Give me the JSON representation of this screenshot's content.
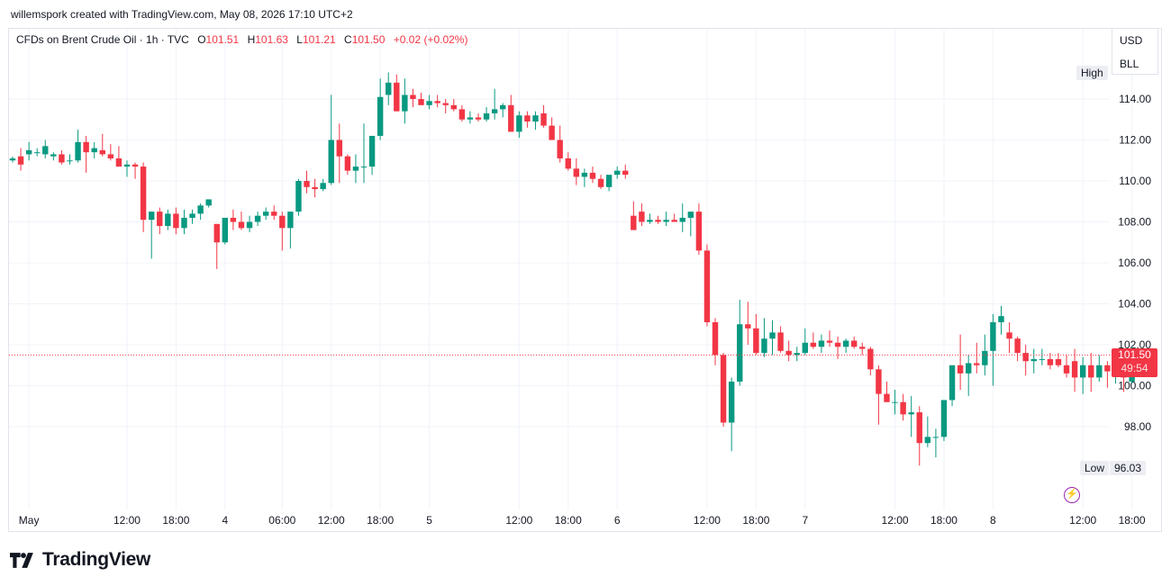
{
  "attribution": "willemspork created with TradingView.com, May 08, 2026 17:10 UTC+2",
  "legend": {
    "symbol": "CFDs on Brent Crude Oil · 1h · TVC",
    "o_label": "O",
    "o_value": "101.51",
    "h_label": "H",
    "h_value": "101.63",
    "l_label": "L",
    "l_value": "101.21",
    "c_label": "C",
    "c_value": "101.50",
    "change": "+0.02 (+0.02%)"
  },
  "currency_menu": [
    "USD",
    "BLL"
  ],
  "high_label": "High",
  "low_label": "Low",
  "low_value": "96.03",
  "last_price": "101.50",
  "countdown": "49:54",
  "brand": "TradingView",
  "colors": {
    "up": "#089981",
    "down": "#f23645",
    "grid": "#f0f3fa",
    "text": "#131722"
  },
  "icons": {
    "flash": "flash-icon",
    "logo": "tradingview-logo-icon"
  },
  "chart_data": {
    "type": "candlestick",
    "title": "CFDs on Brent Crude Oil · 1h · TVC",
    "ylim": [
      95,
      116
    ],
    "y_ticks": [
      "98.00",
      "100.00",
      "102.00",
      "104.00",
      "106.00",
      "108.00",
      "110.00",
      "112.00",
      "114.00"
    ],
    "y_tick_values": [
      98,
      100,
      102,
      104,
      106,
      108,
      110,
      112,
      114
    ],
    "x_ticks": [
      {
        "label": "May",
        "i": 2
      },
      {
        "label": "12:00",
        "i": 14
      },
      {
        "label": "18:00",
        "i": 20
      },
      {
        "label": "4",
        "i": 26
      },
      {
        "label": "06:00",
        "i": 33
      },
      {
        "label": "12:00",
        "i": 39
      },
      {
        "label": "18:00",
        "i": 45
      },
      {
        "label": "5",
        "i": 51
      },
      {
        "label": "12:00",
        "i": 62
      },
      {
        "label": "18:00",
        "i": 68
      },
      {
        "label": "6",
        "i": 74
      },
      {
        "label": "12:00",
        "i": 85
      },
      {
        "label": "18:00",
        "i": 91
      },
      {
        "label": "7",
        "i": 97
      },
      {
        "label": "12:00",
        "i": 108
      },
      {
        "label": "18:00",
        "i": 114
      },
      {
        "label": "8",
        "i": 120
      },
      {
        "label": "12:00",
        "i": 131
      },
      {
        "label": "18:00",
        "i": 137
      }
    ],
    "last_close": 101.5,
    "candles": [
      [
        111.0,
        111.2,
        110.9,
        111.1
      ],
      [
        111.2,
        111.6,
        110.5,
        110.8
      ],
      [
        111.3,
        111.9,
        111.0,
        111.5
      ],
      [
        111.4,
        111.6,
        111.2,
        111.4
      ],
      [
        111.3,
        112.0,
        111.1,
        111.7
      ],
      [
        111.2,
        111.4,
        111.0,
        111.3
      ],
      [
        111.3,
        111.5,
        110.8,
        110.9
      ],
      [
        111.0,
        111.3,
        110.8,
        111.0
      ],
      [
        111.0,
        112.5,
        110.9,
        111.9
      ],
      [
        111.9,
        112.2,
        110.4,
        111.4
      ],
      [
        111.4,
        111.9,
        111.1,
        111.6
      ],
      [
        111.5,
        112.3,
        111.2,
        111.3
      ],
      [
        111.3,
        111.8,
        111.0,
        111.1
      ],
      [
        111.1,
        111.7,
        110.8,
        110.7
      ],
      [
        110.7,
        111.0,
        110.2,
        110.8
      ],
      [
        110.8,
        110.9,
        110.1,
        110.7
      ],
      [
        110.7,
        110.9,
        107.5,
        108.1
      ],
      [
        108.1,
        108.5,
        106.2,
        108.5
      ],
      [
        108.5,
        108.7,
        107.4,
        107.8
      ],
      [
        107.8,
        108.6,
        107.6,
        108.4
      ],
      [
        108.4,
        108.7,
        107.4,
        107.7
      ],
      [
        107.7,
        108.6,
        107.4,
        108.2
      ],
      [
        108.2,
        108.6,
        107.9,
        108.4
      ],
      [
        108.4,
        108.9,
        108.1,
        108.8
      ],
      [
        108.8,
        109.1,
        108.7,
        109.1
      ],
      [
        107.9,
        107.9,
        105.7,
        107.0
      ],
      [
        107.0,
        108.2,
        106.9,
        108.2
      ],
      [
        108.2,
        108.6,
        107.6,
        108.0
      ],
      [
        108.0,
        108.5,
        107.6,
        107.7
      ],
      [
        107.7,
        108.3,
        107.5,
        108.0
      ],
      [
        108.0,
        108.5,
        107.8,
        108.3
      ],
      [
        108.3,
        108.7,
        108.1,
        108.5
      ],
      [
        108.5,
        108.8,
        108.1,
        108.3
      ],
      [
        108.3,
        108.5,
        106.6,
        107.7
      ],
      [
        107.7,
        108.5,
        106.7,
        108.5
      ],
      [
        108.5,
        110.1,
        108.3,
        110.0
      ],
      [
        110.0,
        110.5,
        109.4,
        109.7
      ],
      [
        109.7,
        110.1,
        109.2,
        109.6
      ],
      [
        109.6,
        110.1,
        109.5,
        109.9
      ],
      [
        109.9,
        114.2,
        109.8,
        112.0
      ],
      [
        112.0,
        112.8,
        109.9,
        111.2
      ],
      [
        111.2,
        111.3,
        110.3,
        110.5
      ],
      [
        110.5,
        111.3,
        109.9,
        110.7
      ],
      [
        110.7,
        112.8,
        109.9,
        110.7
      ],
      [
        110.7,
        112.1,
        110.3,
        112.2
      ],
      [
        112.2,
        115.0,
        112.0,
        114.1
      ],
      [
        114.2,
        115.3,
        113.7,
        114.8
      ],
      [
        114.8,
        115.2,
        113.4,
        113.4
      ],
      [
        113.4,
        115.0,
        112.8,
        114.2
      ],
      [
        114.2,
        114.5,
        113.6,
        114.0
      ],
      [
        114.0,
        114.3,
        113.8,
        113.7
      ],
      [
        113.7,
        114.2,
        113.5,
        113.9
      ],
      [
        113.9,
        114.2,
        113.6,
        113.8
      ],
      [
        113.8,
        114.0,
        113.3,
        113.7
      ],
      [
        113.7,
        114.0,
        113.4,
        113.5
      ],
      [
        113.5,
        113.7,
        112.9,
        113.0
      ],
      [
        113.0,
        113.4,
        112.8,
        113.1
      ],
      [
        113.1,
        113.3,
        112.9,
        113.0
      ],
      [
        113.0,
        113.6,
        112.9,
        113.3
      ],
      [
        113.3,
        114.5,
        113.0,
        113.5
      ],
      [
        113.5,
        113.8,
        113.1,
        113.7
      ],
      [
        113.7,
        114.2,
        112.6,
        112.4
      ],
      [
        112.4,
        113.4,
        112.1,
        113.2
      ],
      [
        113.2,
        113.4,
        112.6,
        112.9
      ],
      [
        112.9,
        113.4,
        112.5,
        113.2
      ],
      [
        113.3,
        113.7,
        112.6,
        112.7
      ],
      [
        112.7,
        113.1,
        112.0,
        112.0
      ],
      [
        112.0,
        112.7,
        110.9,
        111.1
      ],
      [
        111.1,
        111.4,
        110.5,
        110.6
      ],
      [
        110.6,
        111.1,
        109.8,
        110.2
      ],
      [
        110.2,
        110.6,
        109.7,
        110.4
      ],
      [
        110.4,
        110.7,
        109.9,
        110.1
      ],
      [
        110.1,
        110.3,
        109.6,
        109.7
      ],
      [
        109.7,
        110.2,
        109.5,
        110.3
      ],
      [
        110.3,
        110.7,
        110.1,
        110.5
      ],
      [
        110.5,
        110.8,
        110.1,
        110.3
      ],
      [
        108.3,
        109.0,
        107.8,
        107.6
      ],
      [
        108.5,
        108.9,
        107.8,
        108.0
      ],
      [
        108.0,
        108.4,
        107.9,
        108.1
      ],
      [
        108.1,
        108.3,
        107.9,
        108.0
      ],
      [
        108.0,
        108.5,
        107.8,
        108.1
      ],
      [
        108.1,
        108.4,
        108.0,
        108.0
      ],
      [
        108.0,
        108.9,
        107.5,
        108.2
      ],
      [
        108.2,
        108.5,
        107.3,
        108.5
      ],
      [
        108.5,
        108.9,
        106.4,
        106.6
      ],
      [
        106.6,
        106.9,
        102.9,
        103.1
      ],
      [
        103.1,
        103.3,
        101.0,
        101.5
      ],
      [
        101.5,
        101.6,
        98.0,
        98.2
      ],
      [
        98.2,
        100.4,
        96.8,
        100.2
      ],
      [
        100.2,
        104.2,
        100.0,
        103.0
      ],
      [
        103.0,
        104.1,
        102.0,
        102.8
      ],
      [
        102.8,
        103.5,
        101.5,
        101.6
      ],
      [
        101.6,
        103.3,
        101.4,
        102.3
      ],
      [
        102.3,
        103.2,
        101.5,
        102.6
      ],
      [
        102.6,
        102.9,
        101.6,
        101.7
      ],
      [
        101.7,
        102.2,
        101.2,
        101.5
      ],
      [
        101.5,
        101.9,
        101.2,
        101.6
      ],
      [
        101.6,
        102.8,
        101.5,
        102.1
      ],
      [
        102.1,
        102.6,
        101.8,
        101.9
      ],
      [
        101.9,
        102.5,
        101.6,
        102.2
      ],
      [
        102.2,
        102.7,
        101.9,
        102.1
      ],
      [
        102.1,
        102.4,
        101.3,
        101.9
      ],
      [
        101.9,
        102.3,
        101.6,
        102.2
      ],
      [
        102.2,
        102.4,
        101.8,
        101.9
      ],
      [
        101.9,
        102.1,
        101.5,
        101.8
      ],
      [
        101.8,
        101.9,
        100.5,
        100.8
      ],
      [
        100.8,
        101.0,
        98.1,
        99.6
      ],
      [
        99.6,
        100.2,
        99.2,
        99.2
      ],
      [
        99.2,
        99.8,
        98.6,
        99.2
      ],
      [
        99.2,
        99.6,
        98.3,
        98.6
      ],
      [
        98.6,
        99.5,
        97.5,
        98.7
      ],
      [
        98.7,
        99.0,
        96.1,
        97.2
      ],
      [
        97.2,
        98.5,
        97.0,
        97.5
      ],
      [
        97.5,
        97.9,
        96.5,
        97.5
      ],
      [
        97.5,
        99.3,
        97.3,
        99.3
      ],
      [
        99.3,
        101.0,
        99.0,
        101.0
      ],
      [
        101.0,
        102.5,
        99.8,
        100.6
      ],
      [
        100.6,
        101.5,
        99.5,
        101.1
      ],
      [
        101.1,
        102.1,
        100.6,
        101.0
      ],
      [
        101.0,
        102.5,
        100.5,
        101.7
      ],
      [
        101.7,
        103.5,
        100.0,
        103.1
      ],
      [
        103.1,
        103.9,
        102.5,
        103.4
      ],
      [
        102.6,
        103.1,
        101.6,
        102.3
      ],
      [
        102.3,
        102.4,
        101.2,
        101.6
      ],
      [
        101.6,
        102.0,
        100.5,
        101.2
      ],
      [
        101.2,
        101.8,
        100.6,
        101.3
      ],
      [
        101.3,
        101.8,
        101.0,
        101.3
      ],
      [
        101.3,
        101.6,
        100.8,
        101.0
      ],
      [
        101.3,
        101.6,
        100.9,
        101.0
      ],
      [
        101.0,
        101.5,
        100.4,
        100.6
      ],
      [
        101.2,
        101.8,
        99.7,
        100.4
      ],
      [
        100.4,
        101.4,
        99.6,
        101.0
      ],
      [
        101.0,
        101.6,
        99.7,
        100.4
      ],
      [
        100.4,
        101.5,
        100.2,
        101.0
      ],
      [
        101.0,
        101.2,
        99.9,
        100.7
      ],
      [
        100.7,
        101.3,
        100.1,
        100.8
      ],
      [
        101.0,
        101.4,
        99.7,
        100.4
      ],
      [
        100.2,
        101.9,
        100.1,
        101.5
      ],
      [
        101.51,
        101.63,
        101.21,
        101.5
      ]
    ]
  }
}
